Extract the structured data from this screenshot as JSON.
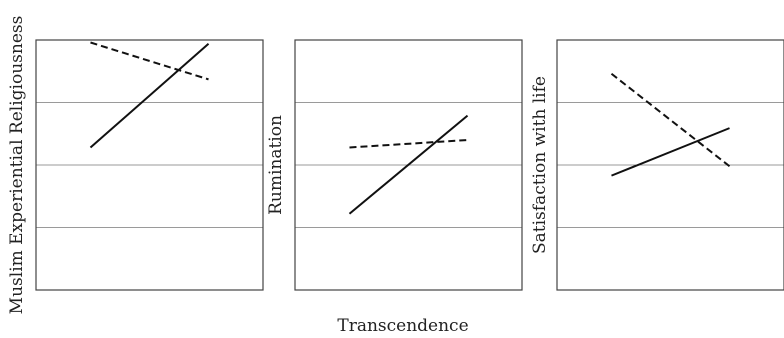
{
  "figure": {
    "xlabel": "Transcendence"
  },
  "chart_data": [
    {
      "type": "line",
      "title": "",
      "ylabel": "Muslim Experiential Religiousness",
      "xlabel": "",
      "x": [
        -1,
        1
      ],
      "ylim": [
        0,
        4
      ],
      "grid": true,
      "series": [
        {
          "style": "solid",
          "values": [
            2.28,
            3.94
          ]
        },
        {
          "style": "dashed",
          "values": [
            3.96,
            3.37
          ]
        }
      ]
    },
    {
      "type": "line",
      "title": "",
      "ylabel": "Rumination",
      "xlabel": "",
      "x": [
        -1,
        1
      ],
      "ylim": [
        0,
        4
      ],
      "grid": true,
      "series": [
        {
          "style": "solid",
          "values": [
            1.22,
            2.79
          ]
        },
        {
          "style": "dashed",
          "values": [
            2.28,
            2.4
          ]
        }
      ]
    },
    {
      "type": "line",
      "title": "",
      "ylabel": "Satisfaction with life",
      "xlabel": "",
      "x": [
        -1,
        1
      ],
      "ylim": [
        0,
        4
      ],
      "grid": true,
      "series": [
        {
          "style": "solid",
          "values": [
            1.83,
            2.59
          ]
        },
        {
          "style": "dashed",
          "values": [
            3.46,
            1.98
          ]
        }
      ]
    }
  ]
}
